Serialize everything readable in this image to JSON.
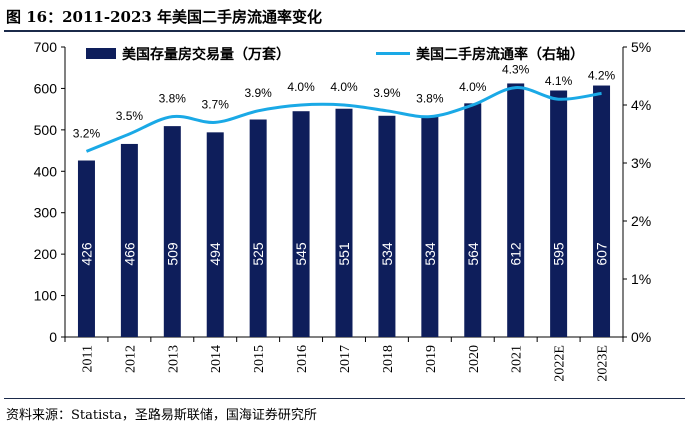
{
  "header": {
    "title": "图 16：2011-2023 年美国二手房流通率变化"
  },
  "footer": {
    "source": "资料来源：Statista，圣路易斯联储，国海证券研究所"
  },
  "chart_data": {
    "type": "bar",
    "categories": [
      "2011",
      "2012",
      "2013",
      "2014",
      "2015",
      "2016",
      "2017",
      "2018",
      "2019",
      "2020",
      "2021",
      "2022E",
      "2023E"
    ],
    "series": [
      {
        "name": "美国存量房交易量（万套）",
        "chart_type": "bar",
        "axis": "left",
        "values": [
          426,
          466,
          509,
          494,
          525,
          545,
          551,
          534,
          534,
          564,
          612,
          595,
          607
        ],
        "labels": [
          "426",
          "466",
          "509",
          "494",
          "525",
          "545",
          "551",
          "534",
          "534",
          "564",
          "612",
          "595",
          "607"
        ],
        "color": "#0e1e5b"
      },
      {
        "name": "美国二手房流通率（右轴）",
        "chart_type": "line",
        "axis": "right",
        "values": [
          3.2,
          3.5,
          3.8,
          3.7,
          3.9,
          4.0,
          4.0,
          3.9,
          3.8,
          4.0,
          4.3,
          4.1,
          4.2
        ],
        "labels": [
          "3.2%",
          "3.5%",
          "3.8%",
          "3.7%",
          "3.9%",
          "4.0%",
          "4.0%",
          "3.9%",
          "3.8%",
          "4.0%",
          "4.3%",
          "4.1%",
          "4.2%"
        ],
        "color": "#1aa9e6"
      }
    ],
    "ylim_left": [
      0,
      700
    ],
    "yticks_left": [
      "0",
      "100",
      "200",
      "300",
      "400",
      "500",
      "600",
      "700"
    ],
    "ylim_right": [
      0,
      5
    ],
    "yticks_right": [
      "0%",
      "1%",
      "2%",
      "3%",
      "4%",
      "5%"
    ],
    "legend_position": "top",
    "grid": false
  }
}
